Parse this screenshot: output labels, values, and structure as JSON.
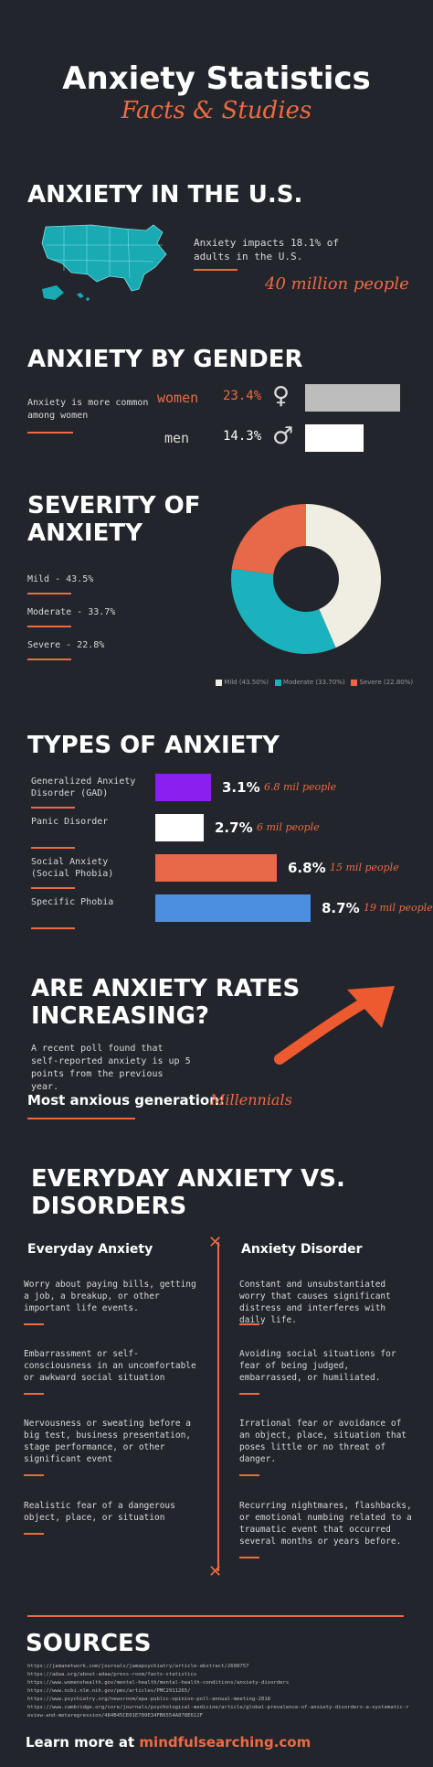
{
  "header": {
    "title": "Anxiety Statistics",
    "subtitle": "Facts & Studies"
  },
  "us": {
    "heading": "ANXIETY IN THE U.S.",
    "stat_text": "Anxiety impacts 18.1% of adults in the U.S.",
    "highlight": "40 million people",
    "map_icon": "us-map-icon"
  },
  "gender": {
    "heading": "ANXIETY BY GENDER",
    "note": "Anxiety is more common among women",
    "rows": [
      {
        "label": "women",
        "pct": "23.4%",
        "symbol": "♀",
        "value": 23.4,
        "color": "#bdbdbd"
      },
      {
        "label": "men",
        "pct": "14.3%",
        "symbol": "♂",
        "value": 14.3,
        "color": "#ffffff"
      }
    ]
  },
  "severity": {
    "heading_line1": "SEVERITY OF",
    "heading_line2": "ANXIETY",
    "items": [
      "Mild - 43.5%",
      "Moderate - 33.7%",
      "Severe - 22.8%"
    ],
    "legend": [
      "Mild (43.50%)",
      "Moderate (33.70%)",
      "Severe (22.80%)"
    ]
  },
  "chart_data": {
    "type": "pie",
    "categories": [
      "Mild",
      "Moderate",
      "Severe"
    ],
    "values": [
      43.5,
      33.7,
      22.8
    ],
    "colors": [
      "#f0ede3",
      "#1ab3bd",
      "#e8694a"
    ],
    "legend_placement": "bottom"
  },
  "types": {
    "heading": "TYPES OF ANXIETY",
    "rows": [
      {
        "label": "Generalized Anxiety Disorder (GAD)",
        "pct": "3.1%",
        "people": "6.8 mil people",
        "value": 3.1,
        "color": "#8a1ff0"
      },
      {
        "label": "Panic Disorder",
        "pct": "2.7%",
        "people": "6 mil people",
        "value": 2.7,
        "color": "#ffffff"
      },
      {
        "label": "Social Anxiety (Social Phobia)",
        "pct": "6.8%",
        "people": "15 mil people",
        "value": 6.8,
        "color": "#e8694a"
      },
      {
        "label": "Specific Phobia",
        "pct": "8.7%",
        "people": "19 mil people",
        "value": 8.7,
        "color": "#4a8fe0"
      }
    ]
  },
  "rates": {
    "heading_line1": "ARE ANXIETY RATES",
    "heading_line2": "INCREASING?",
    "text": "A recent poll found that self-reported anxiety is up 5 points from the previous year.",
    "gen_label": "Most anxious generation:",
    "gen_value": "Millennials"
  },
  "everyday": {
    "heading_line1": "EVERYDAY ANXIETY VS.",
    "heading_line2": "DISORDERS",
    "left_title": "Everyday Anxiety",
    "right_title": "Anxiety Disorder",
    "left": [
      "Worry about paying bills, getting a job, a breakup, or other important life events.",
      "Embarrassment or self-consciousness in an uncomfortable or awkward social situation",
      "Nervousness or sweating before a big test, business presentation, stage performance, or other significant event",
      "Realistic fear of a dangerous object, place, or situation"
    ],
    "right": [
      "Constant and unsubstantiated worry that causes significant distress and interferes with daily life.",
      "Avoiding social situations for fear of being judged, embarrassed, or humiliated.",
      "Irrational fear or avoidance of an object, place, situation that poses little or no threat of danger.",
      "Recurring nightmares, flashbacks, or emotional numbing related to a traumatic event that occurred several months or years before."
    ]
  },
  "sources": {
    "heading": "SOURCES",
    "links": [
      "https://jamanetwork.com/journals/jamapsychiatry/article-abstract/2608757",
      "https://adaa.org/about-adaa/press-room/facts-statistics",
      "https://www.womenshealth.gov/mental-health/mental-health-conditions/anxiety-disorders",
      "https://www.ncbi.nlm.nih.gov/pmc/articles/PMC2911265/",
      "https://www.psychiatry.org/newsroom/apa-public-opinion-poll-annual-meeting-2018",
      "https://www.cambridge.org/core/journals/psychological-medicine/article/global-prevalence-of-anxiety-disorders-a-systematic-review-and-metaregression/484B45CE01E709E34FB6554A878E612F"
    ],
    "learn_more": "Learn more at",
    "site": "mindfulsearching.com"
  }
}
